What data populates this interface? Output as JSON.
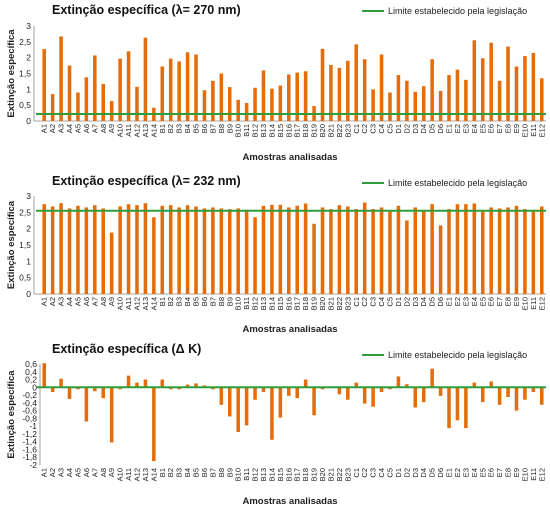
{
  "chart_data": [
    {
      "type": "bar",
      "title": "Extinção específica  (λ= 270 nm)",
      "xlabel": "Amostras analisadas",
      "ylabel": "Extinção específica",
      "legend": "Limite estabelecido pela legislação",
      "legend_position": "top-right",
      "threshold": 0.22,
      "ylim": [
        0,
        3
      ],
      "yticks": [
        "0",
        "0,5",
        "1",
        "1,5",
        "2",
        "2,5",
        "3"
      ],
      "grid": false,
      "bar_color": "#E46C0A",
      "line_color": "#2E9E3C",
      "categories": [
        "A1",
        "A2",
        "A3",
        "A4",
        "A5",
        "A6",
        "A7",
        "A8",
        "A9",
        "A10",
        "A11",
        "A12",
        "A13",
        "A14",
        "B1",
        "B2",
        "B3",
        "B4",
        "B5",
        "B6",
        "B7",
        "B8",
        "B9",
        "B10",
        "B11",
        "B12",
        "B13",
        "B14",
        "B15",
        "B16",
        "B17",
        "B18",
        "B19",
        "B20",
        "B21",
        "B22",
        "B23",
        "C1",
        "C2",
        "C3",
        "C4",
        "C5",
        "D1",
        "D2",
        "D3",
        "D4",
        "D5",
        "D6",
        "E1",
        "E2",
        "E3",
        "E4",
        "E5",
        "E6",
        "E7",
        "E8",
        "E9",
        "E10",
        "E11",
        "E12"
      ],
      "values": [
        2.27,
        0.85,
        2.67,
        1.75,
        0.9,
        1.38,
        2.07,
        1.17,
        0.63,
        1.97,
        2.2,
        1.08,
        2.63,
        0.42,
        1.72,
        1.97,
        1.88,
        2.17,
        2.1,
        0.97,
        1.27,
        1.5,
        1.07,
        0.67,
        0.57,
        1.05,
        1.6,
        1.02,
        1.12,
        1.47,
        1.53,
        1.57,
        0.47,
        2.28,
        1.77,
        1.68,
        1.9,
        2.42,
        1.95,
        1.0,
        2.1,
        0.9,
        1.45,
        1.27,
        0.92,
        1.1,
        1.95,
        0.95,
        1.45,
        1.62,
        1.3,
        2.55,
        1.98,
        2.47,
        1.27,
        2.35,
        1.72,
        2.05,
        2.15,
        1.35
      ]
    },
    {
      "type": "bar",
      "title": "Extinção específica  (λ= 232 nm)",
      "xlabel": "Amostras analisadas",
      "ylabel": "Extinção específica",
      "legend": "Limite estabelecido pela legislação",
      "legend_position": "top-right",
      "threshold": 2.55,
      "ylim": [
        0,
        3
      ],
      "yticks": [
        "0",
        "0,5",
        "1",
        "1,5",
        "2",
        "2,5",
        "3"
      ],
      "grid": false,
      "bar_color": "#E46C0A",
      "line_color": "#2E9E3C",
      "categories": [
        "A1",
        "A2",
        "A3",
        "A4",
        "A5",
        "A6",
        "A7",
        "A8",
        "A9",
        "A10",
        "A11",
        "A12",
        "A13",
        "A14",
        "B1",
        "B2",
        "B3",
        "B4",
        "B5",
        "B6",
        "B7",
        "B8",
        "B9",
        "B10",
        "B11",
        "B12",
        "B13",
        "B14",
        "B15",
        "B16",
        "B17",
        "B18",
        "B19",
        "B20",
        "B21",
        "B22",
        "B23",
        "C1",
        "C2",
        "C3",
        "C4",
        "C5",
        "D1",
        "D2",
        "D3",
        "D4",
        "D5",
        "D6",
        "E1",
        "E2",
        "E3",
        "E4",
        "E5",
        "E6",
        "E7",
        "E8",
        "E9",
        "E10",
        "E11",
        "E12"
      ],
      "values": [
        2.75,
        2.68,
        2.78,
        2.62,
        2.7,
        2.65,
        2.72,
        2.62,
        1.88,
        2.68,
        2.75,
        2.72,
        2.78,
        2.35,
        2.7,
        2.72,
        2.65,
        2.72,
        2.68,
        2.62,
        2.65,
        2.62,
        2.6,
        2.62,
        2.58,
        2.35,
        2.7,
        2.73,
        2.73,
        2.65,
        2.7,
        2.77,
        2.15,
        2.65,
        2.6,
        2.72,
        2.68,
        2.6,
        2.8,
        2.6,
        2.65,
        2.55,
        2.7,
        2.25,
        2.65,
        2.55,
        2.75,
        2.1,
        2.6,
        2.75,
        2.75,
        2.77,
        2.55,
        2.65,
        2.62,
        2.65,
        2.7,
        2.6,
        2.55,
        2.68
      ]
    },
    {
      "type": "bar",
      "title": "Extinção específica  (Δ K)",
      "xlabel": "Amostras analisadas",
      "ylabel": "Extinção específica",
      "legend": "Limite estabelecido pela legislação",
      "legend_position": "top-right",
      "threshold": 0.0,
      "ylim": [
        -2,
        0.6
      ],
      "yticks": [
        "-2",
        "-1,8",
        "-1,6",
        "-1,4",
        "-1,2",
        "-1",
        "-0,8",
        "-0,6",
        "-0,4",
        "-0,2",
        "0",
        "0,2",
        "0,4",
        "0,6"
      ],
      "grid": false,
      "bar_color": "#E46C0A",
      "line_color": "#2E9E3C",
      "categories": [
        "A1",
        "A2",
        "A3",
        "A4",
        "A5",
        "A6",
        "A7",
        "A8",
        "A9",
        "A10",
        "A11",
        "A12",
        "A13",
        "A14",
        "B1",
        "B2",
        "B3",
        "B4",
        "B5",
        "B6",
        "B7",
        "B8",
        "B9",
        "B10",
        "B11",
        "B12",
        "B13",
        "B14",
        "B15",
        "B16",
        "B17",
        "B18",
        "B19",
        "B20",
        "B21",
        "B22",
        "B23",
        "C1",
        "C2",
        "C3",
        "C4",
        "C5",
        "D1",
        "D2",
        "D3",
        "D4",
        "D5",
        "D6",
        "E1",
        "E2",
        "E3",
        "E4",
        "E5",
        "E6",
        "E7",
        "E8",
        "E9",
        "E10",
        "E11",
        "E12"
      ],
      "values": [
        0.62,
        -0.12,
        0.22,
        -0.3,
        -0.05,
        -0.88,
        -0.1,
        -0.28,
        -1.42,
        -0.05,
        0.3,
        0.12,
        0.2,
        -1.9,
        0.2,
        -0.05,
        -0.05,
        0.07,
        0.1,
        0.05,
        -0.05,
        -0.45,
        -0.75,
        -1.15,
        -0.98,
        -0.32,
        -0.12,
        -1.35,
        -0.78,
        -0.22,
        -0.28,
        0.2,
        -0.72,
        -0.05,
        -0.02,
        -0.18,
        -0.32,
        0.12,
        -0.42,
        -0.5,
        -0.12,
        -0.05,
        0.28,
        0.08,
        -0.52,
        -0.38,
        0.48,
        -0.22,
        -1.05,
        -0.85,
        -1.05,
        0.12,
        -0.38,
        0.15,
        -0.45,
        -0.25,
        -0.6,
        -0.32,
        -0.12,
        -0.45
      ]
    }
  ]
}
